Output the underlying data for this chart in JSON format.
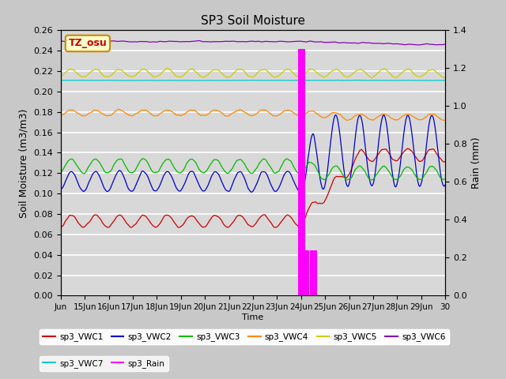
{
  "title": "SP3 Soil Moisture",
  "ylabel_left": "Soil Moisture (m3/m3)",
  "ylabel_right": "Rain (mm)",
  "xlabel": "Time",
  "ylim_left": [
    0.0,
    0.26
  ],
  "ylim_right": [
    0.0,
    1.4
  ],
  "legend_label": "TZ_osu",
  "legend_bg": "#ffffcc",
  "legend_border": "#cc8800",
  "series_colors": {
    "VWC1": "#cc0000",
    "VWC2": "#0000cc",
    "VWC3": "#00bb00",
    "VWC4": "#ff8800",
    "VWC5": "#cccc00",
    "VWC6": "#8800bb",
    "VWC7": "#00cccc",
    "Rain": "#ff00ff"
  },
  "x_tick_labels": [
    "Jun",
    "15Jun",
    "16Jun",
    "17Jun",
    "18Jun",
    "19Jun",
    "20Jun",
    "21Jun",
    "22Jun",
    "23Jun",
    "24Jun",
    "25Jun",
    "26Jun",
    "27Jun",
    "28Jun",
    "29Jun",
    "30"
  ],
  "yticks_left": [
    0.0,
    0.02,
    0.04,
    0.06,
    0.08,
    0.1,
    0.12,
    0.14,
    0.16,
    0.18,
    0.2,
    0.22,
    0.24,
    0.26
  ],
  "yticks_right": [
    0.0,
    0.2,
    0.4,
    0.6,
    0.8,
    1.0,
    1.2,
    1.4
  ]
}
